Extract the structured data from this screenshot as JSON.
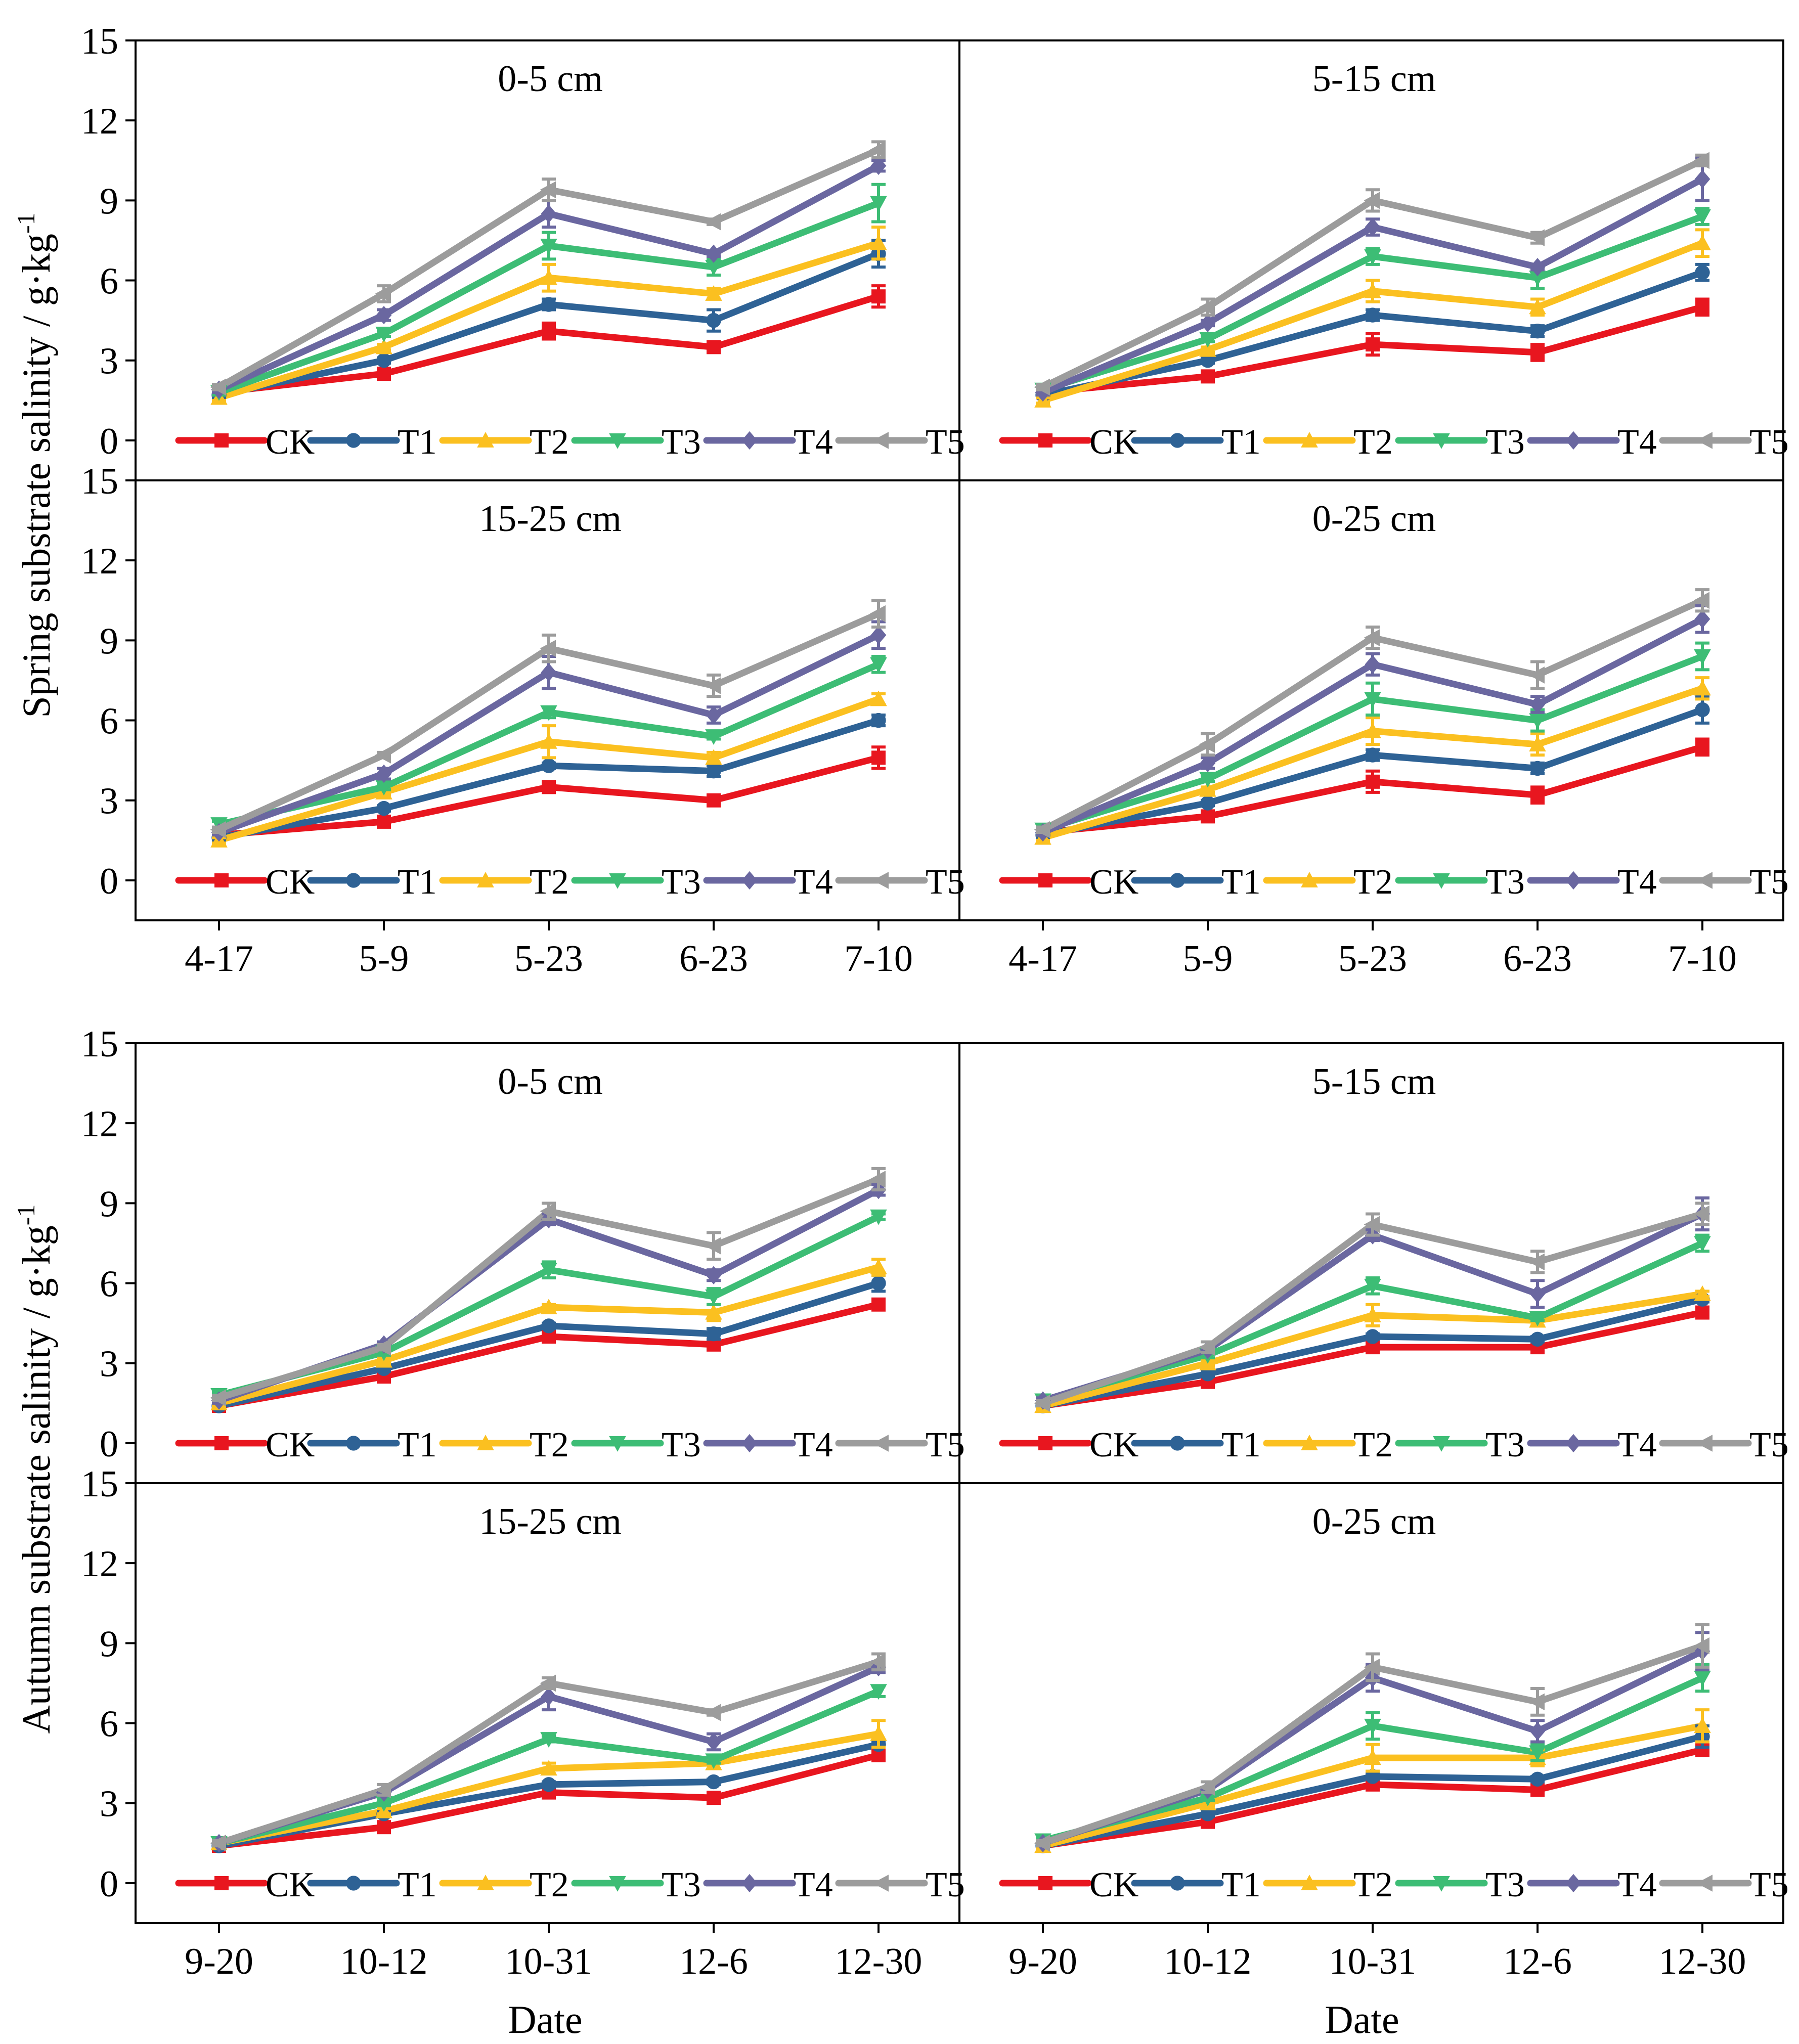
{
  "series_meta": [
    {
      "name": "CK",
      "color": "#e8161f",
      "marker": "square"
    },
    {
      "name": "T1",
      "color": "#2e6295",
      "marker": "circle"
    },
    {
      "name": "T2",
      "color": "#fbc020",
      "marker": "triangle-up"
    },
    {
      "name": "T3",
      "color": "#3dbd75",
      "marker": "triangle-down"
    },
    {
      "name": "T4",
      "color": "#6a67a0",
      "marker": "diamond"
    },
    {
      "name": "T5",
      "color": "#9c9c9c",
      "marker": "triangle-left"
    }
  ],
  "figure": {
    "groups": [
      {
        "ylabel": "Spring substrate salinity / g·kg",
        "ylabel_exp": "-1",
        "categories": [
          "4-17",
          "5-9",
          "5-23",
          "6-23",
          "7-10"
        ],
        "xlabel": ""
      },
      {
        "ylabel": "Autumn substrate salinity / g·kg",
        "ylabel_exp": "-1",
        "categories": [
          "9-20",
          "10-12",
          "10-31",
          "12-6",
          "12-30"
        ],
        "xlabel": "Date"
      }
    ],
    "y_ticks": [
      "0",
      "3",
      "6",
      "9",
      "12",
      "15"
    ]
  },
  "chart_data": [
    {
      "type": "line",
      "group": 0,
      "title": "0-5 cm",
      "ylim": [
        -1.5,
        15
      ],
      "categories": [
        "4-17",
        "5-9",
        "5-23",
        "6-23",
        "7-10"
      ],
      "series": [
        {
          "name": "CK",
          "values": [
            1.8,
            2.5,
            4.1,
            3.5,
            5.4
          ],
          "errors": [
            0.1,
            0.1,
            0.3,
            0.1,
            0.4
          ]
        },
        {
          "name": "T1",
          "values": [
            1.7,
            3.0,
            5.1,
            4.5,
            7.0
          ],
          "errors": [
            0.1,
            0.1,
            0.2,
            0.4,
            0.5
          ]
        },
        {
          "name": "T2",
          "values": [
            1.6,
            3.5,
            6.1,
            5.5,
            7.4
          ],
          "errors": [
            0.1,
            0.1,
            0.5,
            0.2,
            0.6
          ]
        },
        {
          "name": "T3",
          "values": [
            1.8,
            4.0,
            7.3,
            6.5,
            8.9
          ],
          "errors": [
            0.1,
            0.1,
            0.5,
            0.3,
            0.7
          ]
        },
        {
          "name": "T4",
          "values": [
            1.9,
            4.7,
            8.5,
            7.0,
            10.3
          ],
          "errors": [
            0.1,
            0.2,
            0.5,
            0.1,
            0.2
          ]
        },
        {
          "name": "T5",
          "values": [
            2.0,
            5.5,
            9.4,
            8.2,
            10.9
          ],
          "errors": [
            0.1,
            0.3,
            0.4,
            0.1,
            0.3
          ]
        }
      ]
    },
    {
      "type": "line",
      "group": 0,
      "title": "5-15 cm",
      "ylim": [
        -1.5,
        15
      ],
      "categories": [
        "4-17",
        "5-9",
        "5-23",
        "6-23",
        "7-10"
      ],
      "series": [
        {
          "name": "CK",
          "values": [
            1.8,
            2.4,
            3.6,
            3.3,
            5.0
          ],
          "errors": [
            0.1,
            0.1,
            0.4,
            0.3,
            0.3
          ]
        },
        {
          "name": "T1",
          "values": [
            1.7,
            3.0,
            4.7,
            4.1,
            6.3
          ],
          "errors": [
            0.1,
            0.1,
            0.2,
            0.2,
            0.3
          ]
        },
        {
          "name": "T2",
          "values": [
            1.5,
            3.4,
            5.6,
            5.0,
            7.4
          ],
          "errors": [
            0.1,
            0.1,
            0.4,
            0.3,
            0.5
          ]
        },
        {
          "name": "T3",
          "values": [
            1.9,
            3.8,
            6.9,
            6.1,
            8.4
          ],
          "errors": [
            0.1,
            0.1,
            0.3,
            0.4,
            0.3
          ]
        },
        {
          "name": "T4",
          "values": [
            1.8,
            4.4,
            8.0,
            6.5,
            9.8
          ],
          "errors": [
            0.1,
            0.1,
            0.3,
            0.1,
            0.8
          ]
        },
        {
          "name": "T5",
          "values": [
            2.0,
            5.0,
            9.0,
            7.6,
            10.5
          ],
          "errors": [
            0.1,
            0.3,
            0.4,
            0.2,
            0.2
          ]
        }
      ]
    },
    {
      "type": "line",
      "group": 0,
      "title": "15-25 cm",
      "ylim": [
        -1.5,
        15
      ],
      "categories": [
        "4-17",
        "5-9",
        "5-23",
        "6-23",
        "7-10"
      ],
      "series": [
        {
          "name": "CK",
          "values": [
            1.7,
            2.2,
            3.5,
            3.0,
            4.6
          ],
          "errors": [
            0.1,
            0.1,
            0.1,
            0.2,
            0.4
          ]
        },
        {
          "name": "T1",
          "values": [
            1.6,
            2.7,
            4.3,
            4.1,
            6.0
          ],
          "errors": [
            0.1,
            0.1,
            0.1,
            0.2,
            0.2
          ]
        },
        {
          "name": "T2",
          "values": [
            1.5,
            3.3,
            5.2,
            4.6,
            6.8
          ],
          "errors": [
            0.1,
            0.1,
            0.6,
            0.2,
            0.2
          ]
        },
        {
          "name": "T3",
          "values": [
            2.1,
            3.5,
            6.3,
            5.4,
            8.1
          ],
          "errors": [
            0.1,
            0.1,
            0.2,
            0.1,
            0.3
          ]
        },
        {
          "name": "T4",
          "values": [
            1.8,
            4.0,
            7.8,
            6.2,
            9.2
          ],
          "errors": [
            0.1,
            0.2,
            0.6,
            0.3,
            0.5
          ]
        },
        {
          "name": "T5",
          "values": [
            1.9,
            4.7,
            8.7,
            7.3,
            10.0
          ],
          "errors": [
            0.1,
            0.1,
            0.5,
            0.4,
            0.5
          ]
        }
      ]
    },
    {
      "type": "line",
      "group": 0,
      "title": "0-25 cm",
      "ylim": [
        -1.5,
        15
      ],
      "categories": [
        "4-17",
        "5-9",
        "5-23",
        "6-23",
        "7-10"
      ],
      "series": [
        {
          "name": "CK",
          "values": [
            1.8,
            2.4,
            3.7,
            3.2,
            5.0
          ],
          "errors": [
            0.1,
            0.1,
            0.4,
            0.3,
            0.3
          ]
        },
        {
          "name": "T1",
          "values": [
            1.7,
            2.9,
            4.7,
            4.2,
            6.4
          ],
          "errors": [
            0.1,
            0.1,
            0.2,
            0.2,
            0.5
          ]
        },
        {
          "name": "T2",
          "values": [
            1.6,
            3.4,
            5.6,
            5.1,
            7.2
          ],
          "errors": [
            0.1,
            0.1,
            0.5,
            0.4,
            0.4
          ]
        },
        {
          "name": "T3",
          "values": [
            1.9,
            3.8,
            6.8,
            6.0,
            8.4
          ],
          "errors": [
            0.1,
            0.1,
            0.6,
            0.4,
            0.5
          ]
        },
        {
          "name": "T4",
          "values": [
            1.8,
            4.4,
            8.1,
            6.6,
            9.8
          ],
          "errors": [
            0.1,
            0.2,
            0.4,
            0.3,
            0.5
          ]
        },
        {
          "name": "T5",
          "values": [
            1.9,
            5.1,
            9.1,
            7.7,
            10.5
          ],
          "errors": [
            0.1,
            0.4,
            0.4,
            0.5,
            0.4
          ]
        }
      ]
    },
    {
      "type": "line",
      "group": 1,
      "title": "0-5 cm",
      "ylim": [
        -1.5,
        15
      ],
      "categories": [
        "9-20",
        "10-12",
        "10-31",
        "12-6",
        "12-30"
      ],
      "series": [
        {
          "name": "CK",
          "values": [
            1.4,
            2.5,
            4.0,
            3.7,
            5.2
          ],
          "errors": [
            0.1,
            0.1,
            0.1,
            0.1,
            0.1
          ]
        },
        {
          "name": "T1",
          "values": [
            1.4,
            2.8,
            4.4,
            4.1,
            6.0
          ],
          "errors": [
            0.1,
            0.1,
            0.1,
            0.2,
            0.3
          ]
        },
        {
          "name": "T2",
          "values": [
            1.5,
            3.1,
            5.1,
            4.9,
            6.6
          ],
          "errors": [
            0.1,
            0.1,
            0.1,
            0.3,
            0.3
          ]
        },
        {
          "name": "T3",
          "values": [
            1.8,
            3.4,
            6.5,
            5.5,
            8.5
          ],
          "errors": [
            0.1,
            0.1,
            0.3,
            0.3,
            0.1
          ]
        },
        {
          "name": "T4",
          "values": [
            1.6,
            3.7,
            8.4,
            6.3,
            9.5
          ],
          "errors": [
            0.1,
            0.1,
            0.2,
            0.2,
            0.2
          ]
        },
        {
          "name": "T5",
          "values": [
            1.7,
            3.6,
            8.7,
            7.4,
            9.9
          ],
          "errors": [
            0.1,
            0.1,
            0.3,
            0.5,
            0.4
          ]
        }
      ]
    },
    {
      "type": "line",
      "group": 1,
      "title": "5-15 cm",
      "ylim": [
        -1.5,
        15
      ],
      "categories": [
        "9-20",
        "10-12",
        "10-31",
        "12-6",
        "12-30"
      ],
      "series": [
        {
          "name": "CK",
          "values": [
            1.4,
            2.3,
            3.6,
            3.6,
            4.9
          ],
          "errors": [
            0.1,
            0.1,
            0.1,
            0.1,
            0.2
          ]
        },
        {
          "name": "T1",
          "values": [
            1.4,
            2.6,
            4.0,
            3.9,
            5.4
          ],
          "errors": [
            0.1,
            0.1,
            0.1,
            0.1,
            0.1
          ]
        },
        {
          "name": "T2",
          "values": [
            1.4,
            3.0,
            4.8,
            4.6,
            5.6
          ],
          "errors": [
            0.1,
            0.1,
            0.4,
            0.2,
            0.1
          ]
        },
        {
          "name": "T3",
          "values": [
            1.6,
            3.3,
            5.9,
            4.7,
            7.5
          ],
          "errors": [
            0.1,
            0.1,
            0.3,
            0.1,
            0.3
          ]
        },
        {
          "name": "T4",
          "values": [
            1.6,
            3.5,
            7.8,
            5.6,
            8.6
          ],
          "errors": [
            0.1,
            0.1,
            0.2,
            0.5,
            0.6
          ]
        },
        {
          "name": "T5",
          "values": [
            1.5,
            3.6,
            8.2,
            6.8,
            8.6
          ],
          "errors": [
            0.1,
            0.2,
            0.4,
            0.4,
            0.4
          ]
        }
      ]
    },
    {
      "type": "line",
      "group": 1,
      "title": "15-25 cm",
      "ylim": [
        -1.5,
        15
      ],
      "categories": [
        "9-20",
        "10-12",
        "10-31",
        "12-6",
        "12-30"
      ],
      "series": [
        {
          "name": "CK",
          "values": [
            1.4,
            2.1,
            3.4,
            3.2,
            4.8
          ],
          "errors": [
            0.1,
            0.1,
            0.1,
            0.1,
            0.1
          ]
        },
        {
          "name": "T1",
          "values": [
            1.4,
            2.6,
            3.7,
            3.8,
            5.2
          ],
          "errors": [
            0.1,
            0.1,
            0.1,
            0.1,
            0.1
          ]
        },
        {
          "name": "T2",
          "values": [
            1.5,
            2.7,
            4.3,
            4.5,
            5.6
          ],
          "errors": [
            0.1,
            0.1,
            0.2,
            0.2,
            0.5
          ]
        },
        {
          "name": "T3",
          "values": [
            1.5,
            3.0,
            5.4,
            4.6,
            7.2
          ],
          "errors": [
            0.1,
            0.1,
            0.1,
            0.1,
            0.2
          ]
        },
        {
          "name": "T4",
          "values": [
            1.5,
            3.4,
            7.0,
            5.3,
            8.1
          ],
          "errors": [
            0.1,
            0.1,
            0.5,
            0.3,
            0.2
          ]
        },
        {
          "name": "T5",
          "values": [
            1.5,
            3.5,
            7.5,
            6.4,
            8.3
          ],
          "errors": [
            0.1,
            0.2,
            0.2,
            0.1,
            0.3
          ]
        }
      ]
    },
    {
      "type": "line",
      "group": 1,
      "title": "0-25 cm",
      "ylim": [
        -1.5,
        15
      ],
      "categories": [
        "9-20",
        "10-12",
        "10-31",
        "12-6",
        "12-30"
      ],
      "series": [
        {
          "name": "CK",
          "values": [
            1.4,
            2.3,
            3.7,
            3.5,
            5.0
          ],
          "errors": [
            0.1,
            0.1,
            0.1,
            0.1,
            0.1
          ]
        },
        {
          "name": "T1",
          "values": [
            1.4,
            2.6,
            4.0,
            3.9,
            5.5
          ],
          "errors": [
            0.1,
            0.1,
            0.1,
            0.1,
            0.4
          ]
        },
        {
          "name": "T2",
          "values": [
            1.4,
            3.0,
            4.7,
            4.7,
            5.9
          ],
          "errors": [
            0.1,
            0.1,
            0.5,
            0.3,
            0.6
          ]
        },
        {
          "name": "T3",
          "values": [
            1.6,
            3.2,
            5.9,
            4.9,
            7.7
          ],
          "errors": [
            0.1,
            0.1,
            0.5,
            0.3,
            0.5
          ]
        },
        {
          "name": "T4",
          "values": [
            1.5,
            3.5,
            7.7,
            5.7,
            8.7
          ],
          "errors": [
            0.1,
            0.1,
            0.5,
            0.4,
            0.7
          ]
        },
        {
          "name": "T5",
          "values": [
            1.5,
            3.6,
            8.1,
            6.8,
            8.9
          ],
          "errors": [
            0.1,
            0.2,
            0.5,
            0.5,
            0.8
          ]
        }
      ]
    }
  ]
}
